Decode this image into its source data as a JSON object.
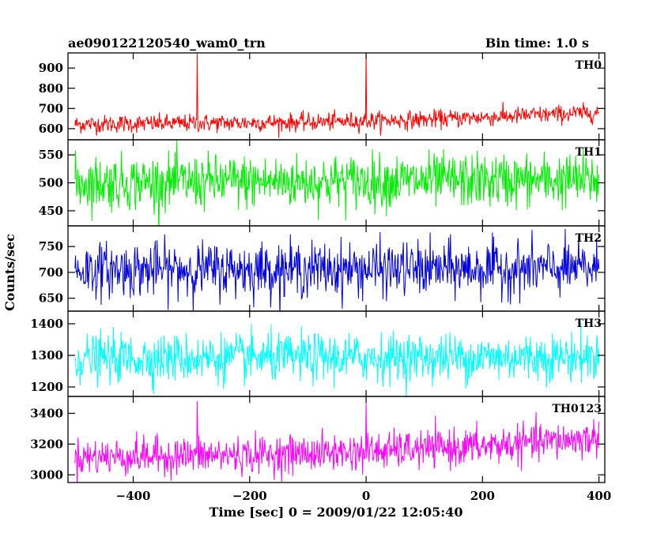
{
  "header": {
    "left": "ae090122120540_wam0_trn",
    "right": "Bin time: 1.0 s"
  },
  "chart_data": {
    "type": "line",
    "title": "ae090122120540_wam0_trn",
    "bin_time": "Bin time: 1.0 s",
    "xlabel": "Time [sec] 0 = 2009/01/22 12:05:40",
    "ylabel": "Counts/sec",
    "xlim": [
      -512,
      410
    ],
    "x_data_range": [
      -500,
      400
    ],
    "x_ticks": [
      -400,
      -200,
      0,
      200,
      400
    ],
    "x_tick_labels": [
      "−400",
      "−200",
      "0",
      "200",
      "400"
    ],
    "grid": false,
    "panels": [
      {
        "name": "TH0",
        "color": "#ff0000",
        "ylim": [
          545,
          975
        ],
        "y_ticks": [
          600,
          700,
          800,
          900
        ],
        "y_tick_labels": [
          "600",
          "700",
          "800",
          "900"
        ],
        "trend": [
          [
            -500,
            622
          ],
          [
            -300,
            627
          ],
          [
            -100,
            632
          ],
          [
            100,
            645
          ],
          [
            250,
            662
          ],
          [
            400,
            680
          ]
        ],
        "noise_sd": 22,
        "spikes": [
          {
            "x": -290,
            "y": 975
          },
          {
            "x": 0,
            "y": 975
          }
        ]
      },
      {
        "name": "TH1",
        "color": "#00ee00",
        "ylim": [
          423,
          577
        ],
        "y_ticks": [
          450,
          500,
          550
        ],
        "y_tick_labels": [
          "450",
          "500",
          "550"
        ],
        "trend": [
          [
            -500,
            500
          ],
          [
            400,
            505
          ]
        ],
        "noise_sd": 24,
        "spikes": []
      },
      {
        "name": "TH2",
        "color": "#0000dd",
        "ylim": [
          625,
          790
        ],
        "y_ticks": [
          650,
          700,
          750
        ],
        "y_tick_labels": [
          "650",
          "700",
          "750"
        ],
        "trend": [
          [
            -500,
            705
          ],
          [
            400,
            707
          ]
        ],
        "noise_sd": 26,
        "spikes": []
      },
      {
        "name": "TH3",
        "color": "#00ffff",
        "ylim": [
          1170,
          1440
        ],
        "y_ticks": [
          1200,
          1300,
          1400
        ],
        "y_tick_labels": [
          "1200",
          "1300",
          "1400"
        ],
        "trend": [
          [
            -500,
            1290
          ],
          [
            400,
            1295
          ]
        ],
        "noise_sd": 38,
        "spikes": []
      },
      {
        "name": "TH0123",
        "color": "#ff00ff",
        "ylim": [
          2950,
          3510
        ],
        "y_ticks": [
          3000,
          3200,
          3400
        ],
        "y_tick_labels": [
          "3000",
          "3200",
          "3400"
        ],
        "trend": [
          [
            -500,
            3115
          ],
          [
            -200,
            3130
          ],
          [
            0,
            3150
          ],
          [
            200,
            3185
          ],
          [
            400,
            3240
          ]
        ],
        "noise_sd": 60,
        "spikes": [
          {
            "x": -290,
            "y": 3480
          },
          {
            "x": 0,
            "y": 3470
          }
        ]
      }
    ]
  }
}
